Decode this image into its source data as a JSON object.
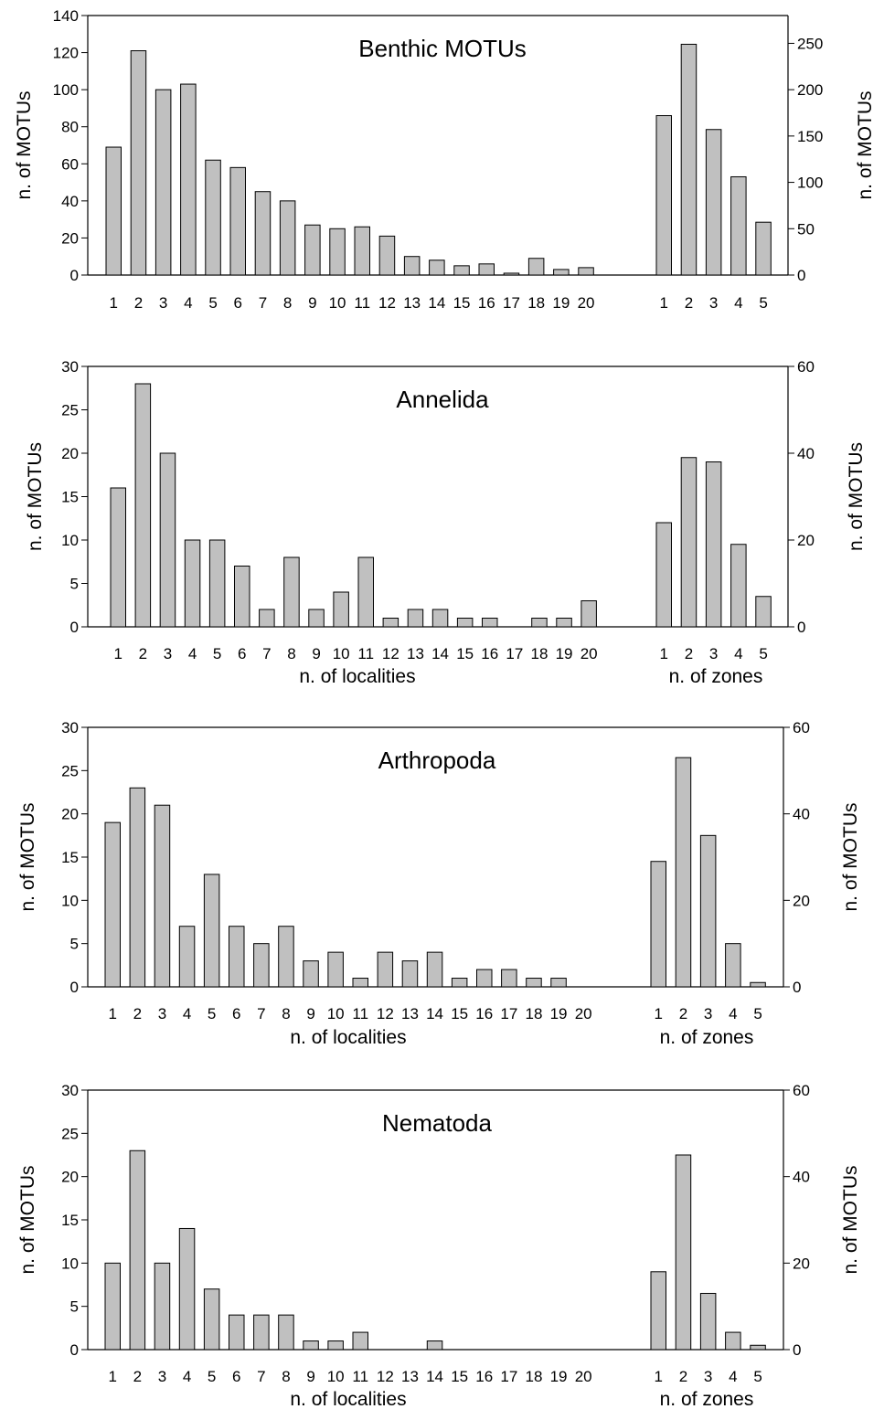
{
  "chart_data": [
    {
      "type": "bar",
      "title": "Benthic MOTUs",
      "ylabel_left": "n. of MOTUs",
      "ylabel_right": "n. of MOTUs",
      "localities": {
        "xlabel": "",
        "categories": [
          "1",
          "2",
          "3",
          "4",
          "5",
          "6",
          "7",
          "8",
          "9",
          "10",
          "11",
          "12",
          "13",
          "14",
          "15",
          "16",
          "17",
          "18",
          "19",
          "20"
        ],
        "values": [
          69,
          121,
          100,
          103,
          62,
          58,
          45,
          40,
          27,
          25,
          26,
          21,
          10,
          8,
          5,
          6,
          1,
          9,
          3,
          4
        ],
        "ylim": [
          0,
          140
        ],
        "yticks": [
          0,
          20,
          40,
          60,
          80,
          100,
          120,
          140
        ]
      },
      "zones": {
        "xlabel": "",
        "categories": [
          "1",
          "2",
          "3",
          "4",
          "5"
        ],
        "values": [
          172,
          249,
          157,
          106,
          57
        ],
        "ylim": [
          0,
          280
        ],
        "yticks": [
          0,
          50,
          100,
          150,
          200,
          250
        ]
      }
    },
    {
      "type": "bar",
      "title": "Annelida",
      "ylabel_left": "n. of MOTUs",
      "ylabel_right": "n. of MOTUs",
      "localities": {
        "xlabel": "n. of localities",
        "categories": [
          "1",
          "2",
          "3",
          "4",
          "5",
          "6",
          "7",
          "8",
          "9",
          "10",
          "11",
          "12",
          "13",
          "14",
          "15",
          "16",
          "17",
          "18",
          "19",
          "20"
        ],
        "values": [
          16,
          28,
          20,
          10,
          10,
          7,
          2,
          8,
          2,
          4,
          8,
          1,
          2,
          2,
          1,
          1,
          0,
          1,
          1,
          3
        ],
        "ylim": [
          0,
          30
        ],
        "yticks": [
          0,
          5,
          10,
          15,
          20,
          25,
          30
        ]
      },
      "zones": {
        "xlabel": "n. of zones",
        "categories": [
          "1",
          "2",
          "3",
          "4",
          "5"
        ],
        "values": [
          24,
          39,
          38,
          19,
          7
        ],
        "ylim": [
          0,
          60
        ],
        "yticks": [
          0,
          20,
          40,
          60
        ]
      }
    },
    {
      "type": "bar",
      "title": "Arthropoda",
      "ylabel_left": "n. of MOTUs",
      "ylabel_right": "n. of MOTUs",
      "localities": {
        "xlabel": "n. of localities",
        "categories": [
          "1",
          "2",
          "3",
          "4",
          "5",
          "6",
          "7",
          "8",
          "9",
          "10",
          "11",
          "12",
          "13",
          "14",
          "15",
          "16",
          "17",
          "18",
          "19",
          "20"
        ],
        "values": [
          19,
          23,
          21,
          7,
          13,
          7,
          5,
          7,
          3,
          4,
          1,
          4,
          3,
          4,
          1,
          2,
          2,
          1,
          1,
          0
        ],
        "ylim": [
          0,
          30
        ],
        "yticks": [
          0,
          5,
          10,
          15,
          20,
          25,
          30
        ]
      },
      "zones": {
        "xlabel": "n. of zones",
        "categories": [
          "1",
          "2",
          "3",
          "4",
          "5"
        ],
        "values": [
          29,
          53,
          35,
          10,
          1
        ],
        "ylim": [
          0,
          60
        ],
        "yticks": [
          0,
          20,
          40,
          60
        ]
      }
    },
    {
      "type": "bar",
      "title": "Nematoda",
      "ylabel_left": "n. of MOTUs",
      "ylabel_right": "n. of MOTUs",
      "localities": {
        "xlabel": "n. of localities",
        "categories": [
          "1",
          "2",
          "3",
          "4",
          "5",
          "6",
          "7",
          "8",
          "9",
          "10",
          "11",
          "12",
          "13",
          "14",
          "15",
          "16",
          "17",
          "18",
          "19",
          "20"
        ],
        "values": [
          10,
          23,
          10,
          14,
          7,
          4,
          4,
          4,
          1,
          1,
          2,
          0,
          0,
          1,
          0,
          0,
          0,
          0,
          0,
          0
        ],
        "ylim": [
          0,
          30
        ],
        "yticks": [
          0,
          5,
          10,
          15,
          20,
          25,
          30
        ]
      },
      "zones": {
        "xlabel": "n. of zones",
        "categories": [
          "1",
          "2",
          "3",
          "4",
          "5"
        ],
        "values": [
          18,
          45,
          13,
          4,
          1
        ],
        "ylim": [
          0,
          60
        ],
        "yticks": [
          0,
          20,
          40,
          60
        ]
      }
    }
  ]
}
